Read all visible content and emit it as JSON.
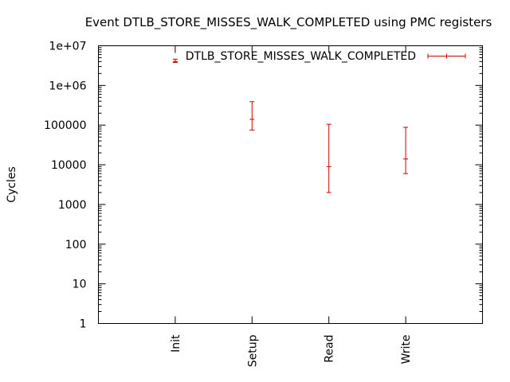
{
  "colors": {
    "series": "#cc0000",
    "axis": "#000000",
    "background": "#ffffff"
  },
  "chart_data": {
    "type": "errorbar",
    "title": "Event DTLB_STORE_MISSES_WALK_COMPLETED using PMC registers",
    "xlabel": "",
    "ylabel": "Cycles",
    "yscale": "log",
    "ylim": [
      1,
      10000000
    ],
    "yticks": [
      1,
      10,
      100,
      1000,
      10000,
      100000,
      1000000,
      10000000
    ],
    "ytick_labels": [
      "1",
      "10",
      "100",
      "1000",
      "10000",
      "100000",
      "1e+06",
      "1e+07"
    ],
    "categories": [
      "Init",
      "Setup",
      "Read",
      "Write"
    ],
    "grid": false,
    "legend_position": "top-right",
    "series": [
      {
        "name": "DTLB_STORE_MISSES_WALK_COMPLETED",
        "color": "#cc0000",
        "points": [
          {
            "x": "Init",
            "y": 4000000,
            "low": 3800000,
            "high": 4600000
          },
          {
            "x": "Setup",
            "y": 140000,
            "low": 75000,
            "high": 390000
          },
          {
            "x": "Read",
            "y": 9000,
            "low": 2000,
            "high": 105000
          },
          {
            "x": "Write",
            "y": 14000,
            "low": 6000,
            "high": 88000
          }
        ]
      }
    ]
  }
}
